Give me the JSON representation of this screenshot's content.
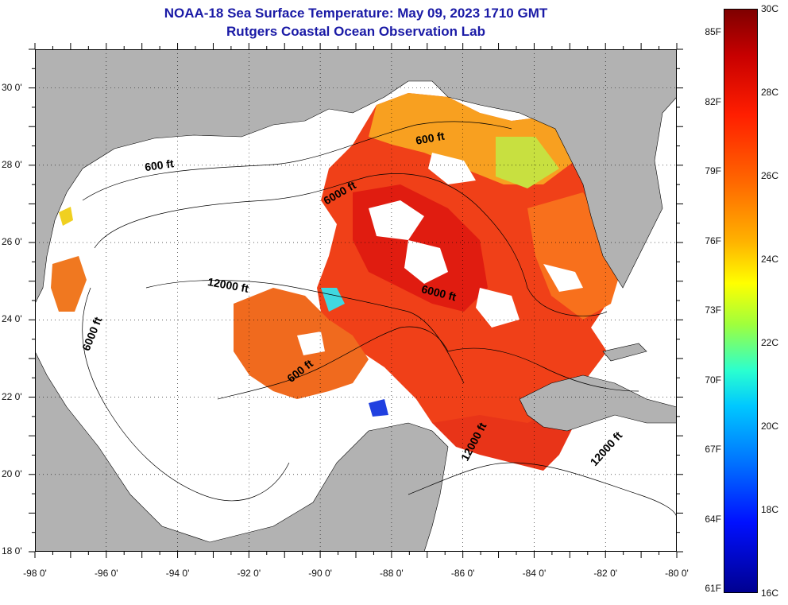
{
  "title": {
    "line1": "NOAA-18 Sea Surface Temperature:  May 09, 2023 1710 GMT",
    "line2": "Rutgers Coastal Ocean Observation Lab"
  },
  "map": {
    "lat_ticks": [
      "30 0'",
      "28 0'",
      "26 0'",
      "24 0'",
      "22 0'",
      "20 0'",
      "18 0'"
    ],
    "lat_values": [
      30,
      28,
      26,
      24,
      22,
      20,
      18
    ],
    "lon_ticks": [
      "-98 0'",
      "-96 0'",
      "-94 0'",
      "-92 0'",
      "-90 0'",
      "-88 0'",
      "-86 0'",
      "-84 0'",
      "-82 0'",
      "-80 0'"
    ],
    "lon_values": [
      -98,
      -96,
      -94,
      -92,
      -90,
      -88,
      -86,
      -84,
      -82,
      -80
    ],
    "extent": {
      "lon_min": -98,
      "lon_max": -80,
      "lat_min": 18,
      "lat_max": 31
    },
    "contour_labels": [
      {
        "text": "600 ft",
        "lon": -94.5,
        "lat": 27.9,
        "angle": -8
      },
      {
        "text": "600 ft",
        "lon": -86.9,
        "lat": 28.6,
        "angle": -10
      },
      {
        "text": "6000 ft",
        "lon": -89.4,
        "lat": 27.2,
        "angle": -30
      },
      {
        "text": "12000 ft",
        "lon": -92.6,
        "lat": 24.8,
        "angle": 10
      },
      {
        "text": "6000 ft",
        "lon": -86.7,
        "lat": 24.6,
        "angle": 14
      },
      {
        "text": "6000 ft",
        "lon": -96.3,
        "lat": 23.6,
        "angle": -68
      },
      {
        "text": "600 ft",
        "lon": -90.5,
        "lat": 22.6,
        "angle": -38
      },
      {
        "text": "12000 ft",
        "lon": -85.6,
        "lat": 20.8,
        "angle": -62
      },
      {
        "text": "12000 ft",
        "lon": -81.9,
        "lat": 20.6,
        "angle": -48
      }
    ],
    "colors": {
      "land": "#b2b2b2",
      "cloud": "#ffffff",
      "frame": "#000000",
      "grid": "#000000"
    }
  },
  "colorbar": {
    "min_c": 16,
    "max_c": 30,
    "f_labels": [
      "85F",
      "82F",
      "79F",
      "76F",
      "73F",
      "70F",
      "67F",
      "64F",
      "61F"
    ],
    "f_values": [
      85,
      82,
      79,
      76,
      73,
      70,
      67,
      64,
      61
    ],
    "c_labels": [
      "30C",
      "28C",
      "26C",
      "24C",
      "22C",
      "20C",
      "18C",
      "16C"
    ],
    "c_values": [
      30,
      28,
      26,
      24,
      22,
      20,
      18,
      16
    ]
  }
}
